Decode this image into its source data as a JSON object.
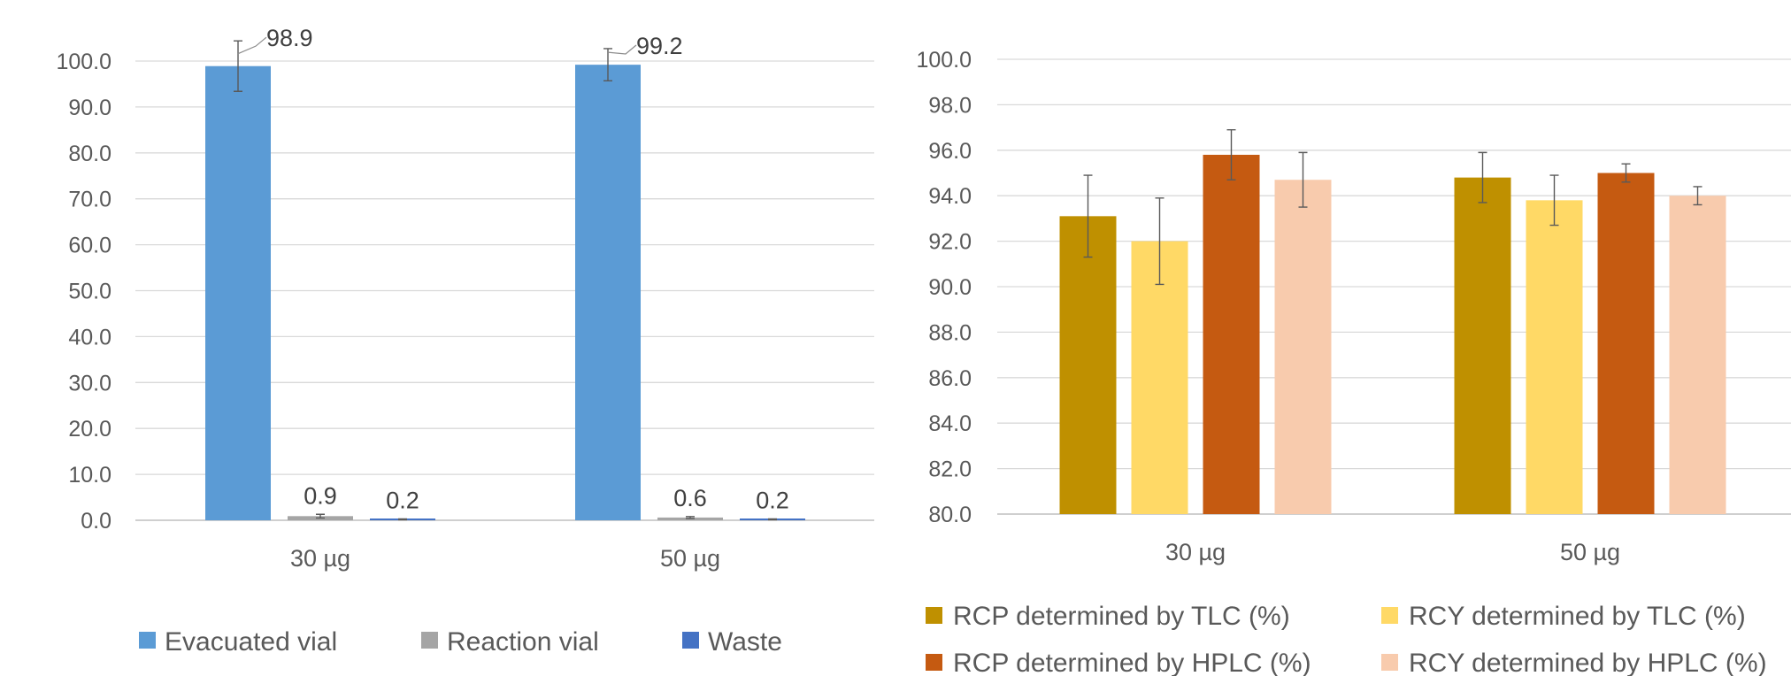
{
  "chart_data": [
    {
      "type": "bar",
      "title": "",
      "xlabel": "",
      "ylabel": "",
      "categories": [
        "30 µg",
        "50 µg"
      ],
      "ylim": [
        0,
        100
      ],
      "yticks": [
        "0.0",
        "10.0",
        "20.0",
        "30.0",
        "40.0",
        "50.0",
        "60.0",
        "70.0",
        "80.0",
        "90.0",
        "100.0"
      ],
      "grid": true,
      "legend_position": "bottom",
      "series": [
        {
          "name": "Evacuated vial",
          "color": "#5b9bd5",
          "values": [
            98.9,
            99.2
          ],
          "errors": [
            5.5,
            3.5
          ],
          "labels": [
            "98.9",
            "99.2"
          ]
        },
        {
          "name": "Reaction vial",
          "color": "#a5a5a5",
          "values": [
            0.9,
            0.6
          ],
          "errors": [
            0.4,
            0.2
          ],
          "labels": [
            "0.9",
            "0.6"
          ]
        },
        {
          "name": "Waste",
          "color": "#4472c4",
          "values": [
            0.2,
            0.2
          ],
          "errors": [
            0.1,
            0.1
          ],
          "labels": [
            "0.2",
            "0.2"
          ]
        }
      ]
    },
    {
      "type": "bar",
      "title": "",
      "xlabel": "",
      "ylabel": "",
      "categories": [
        "30 µg",
        "50 µg"
      ],
      "ylim": [
        80,
        100
      ],
      "yticks": [
        "80.0",
        "82.0",
        "84.0",
        "86.0",
        "88.0",
        "90.0",
        "92.0",
        "94.0",
        "96.0",
        "98.0",
        "100.0"
      ],
      "grid": true,
      "legend_position": "bottom",
      "series": [
        {
          "name": "RCP determined by TLC (%)",
          "color": "#bf9000",
          "values": [
            93.1,
            94.8
          ],
          "errors": [
            1.8,
            1.1
          ]
        },
        {
          "name": "RCY determined by TLC (%)",
          "color": "#ffd966",
          "values": [
            92.0,
            93.8
          ],
          "errors": [
            1.9,
            1.1
          ]
        },
        {
          "name": "RCP determined by HPLC (%)",
          "color": "#c55a11",
          "values": [
            95.8,
            95.0
          ],
          "errors": [
            1.1,
            0.4
          ]
        },
        {
          "name": "RCY determined by HPLC (%)",
          "color": "#f8cbad",
          "values": [
            94.7,
            94.0
          ],
          "errors": [
            1.2,
            0.4
          ]
        }
      ]
    }
  ]
}
